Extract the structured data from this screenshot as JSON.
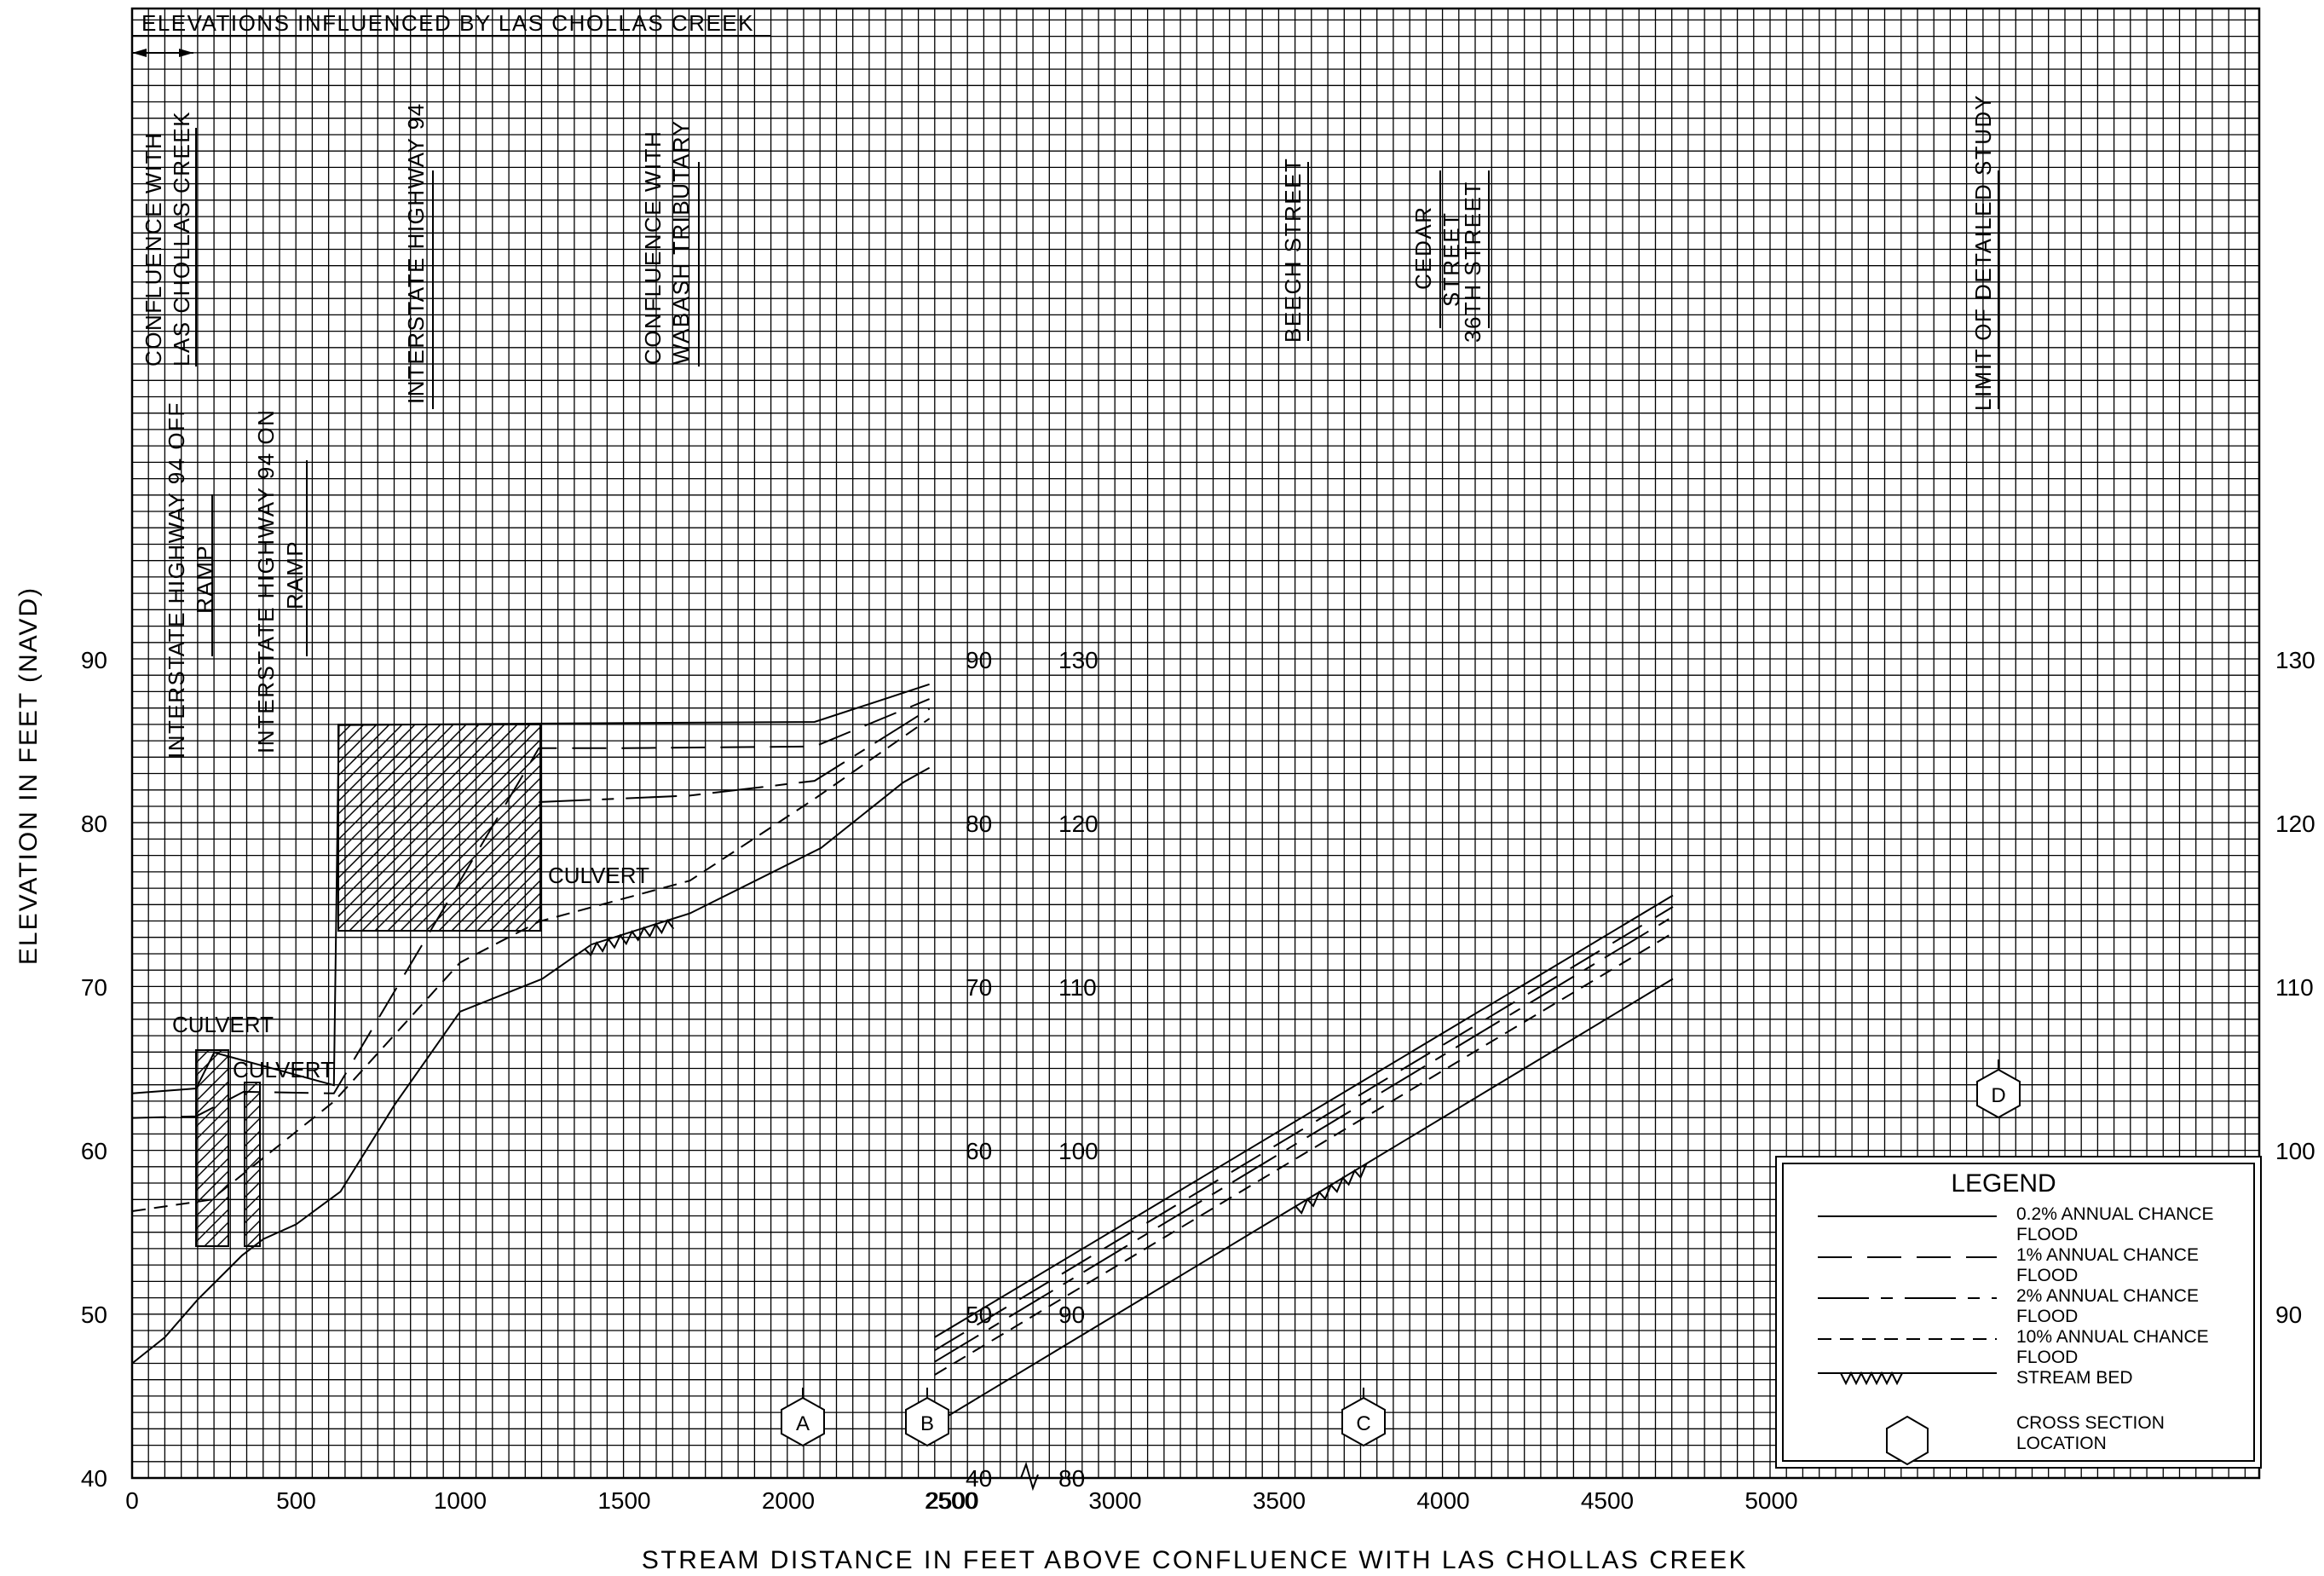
{
  "chart_data": {
    "type": "line",
    "title": "ELEVATIONS INFLUENCED BY LAS CHOLLAS CREEK",
    "xlabel": "STREAM DISTANCE IN FEET ABOVE CONFLUENCE WITH LAS CHOLLAS CREEK",
    "ylabel": "ELEVATION IN FEET (NAVD)",
    "grid": true,
    "left_panel": {
      "xlim": [
        0,
        2500
      ],
      "ylim": [
        40,
        130
      ],
      "x_ticks": [
        "0",
        "500",
        "1000",
        "1500",
        "2000",
        "2500"
      ],
      "y_ticks_left": [
        "40",
        "50",
        "60",
        "70",
        "80",
        "90"
      ],
      "y_ticks_inner": [
        "40",
        "50",
        "60",
        "70",
        "80",
        "90"
      ],
      "series": [
        {
          "name": "0.2% ANNUAL CHANCE FLOOD",
          "x": [
            0,
            195,
            250,
            615,
            630,
            1240,
            2080,
            2430
          ],
          "y": [
            63.5,
            63.8,
            66.0,
            64.0,
            86.0,
            86.1,
            86.2,
            88.5
          ]
        },
        {
          "name": "1% ANNUAL CHANCE FLOOD",
          "x": [
            0,
            195,
            340,
            615,
            1240,
            1500,
            2080,
            2430
          ],
          "y": [
            62.0,
            62.1,
            63.6,
            63.5,
            84.6,
            84.6,
            84.7,
            87.6
          ]
        },
        {
          "name": "2% ANNUAL CHANCE FLOOD",
          "x": [
            1240,
            1700,
            2080,
            2430
          ],
          "y": [
            81.3,
            81.7,
            82.6,
            87.0
          ]
        },
        {
          "name": "10% ANNUAL CHANCE FLOOD",
          "x": [
            0,
            240,
            615,
            1000,
            1240,
            1700,
            2080,
            2430
          ],
          "y": [
            56.3,
            57.0,
            63.0,
            71.5,
            74.0,
            76.5,
            81.5,
            86.4
          ]
        },
        {
          "name": "STREAM BED",
          "x": [
            0,
            100,
            200,
            335,
            400,
            500,
            635,
            800,
            1000,
            1250,
            1400,
            1700,
            2100,
            2350,
            2430
          ],
          "y": [
            47.0,
            48.6,
            50.9,
            53.6,
            54.6,
            55.5,
            57.5,
            62.8,
            68.5,
            70.5,
            72.6,
            74.5,
            78.5,
            82.5,
            83.4
          ]
        }
      ]
    },
    "right_panel": {
      "xlim": [
        2500,
        5000
      ],
      "ylim": [
        80,
        130
      ],
      "x_ticks": [
        "2500",
        "3000",
        "3500",
        "4000",
        "4500",
        "5000"
      ],
      "y_ticks_inner": [
        "80",
        "90",
        "100",
        "110",
        "120",
        "130"
      ],
      "y_ticks_right": [
        "90",
        "100",
        "110",
        "120",
        "130"
      ],
      "series": [
        {
          "name": "0.2% ANNUAL CHANCE FLOOD",
          "x": [
            2450,
            4700
          ],
          "y": [
            88.6,
            115.6
          ]
        },
        {
          "name": "1% ANNUAL CHANCE FLOOD",
          "x": [
            2450,
            4700
          ],
          "y": [
            87.8,
            114.9
          ]
        },
        {
          "name": "2% ANNUAL CHANCE FLOOD",
          "x": [
            2450,
            4700
          ],
          "y": [
            87.1,
            114.3
          ]
        },
        {
          "name": "10% ANNUAL CHANCE FLOOD",
          "x": [
            2450,
            4700
          ],
          "y": [
            86.3,
            113.3
          ]
        },
        {
          "name": "STREAM BED",
          "x": [
            2450,
            4700
          ],
          "y": [
            83.3,
            110.5
          ]
        }
      ]
    },
    "left_labels": [
      "CONFLUENCE WITH",
      "LAS CHOLLAS CREEK",
      "INTERSTATE HIGHWAY 94 OFF",
      "RAMP",
      "INTERSTATE HIGHWAY 94 ON",
      "RAMP",
      "INTERSTATE HIGHWAY 94",
      "CONFLUENCE WITH",
      "WABASH TRIBUTARY"
    ],
    "right_labels": [
      "BEECH STREET",
      "CEDAR",
      "STREET",
      "36TH STREET",
      "LIMIT OF DETAILED STUDY"
    ],
    "annotations": [
      "CULVERT",
      "CULVERT",
      "CULVERT"
    ],
    "cross_sections": [
      "A",
      "B",
      "C",
      "D"
    ],
    "legend": {
      "title": "LEGEND",
      "placement": "bottom-right",
      "entries": [
        [
          "0.2% ANNUAL CHANCE",
          "FLOOD"
        ],
        [
          "1% ANNUAL CHANCE",
          "FLOOD"
        ],
        [
          "2% ANNUAL CHANCE",
          "FLOOD"
        ],
        [
          "10% ANNUAL CHANCE",
          "FLOOD"
        ],
        [
          "STREAM BED"
        ],
        [
          "CROSS SECTION",
          "LOCATION"
        ]
      ]
    }
  }
}
